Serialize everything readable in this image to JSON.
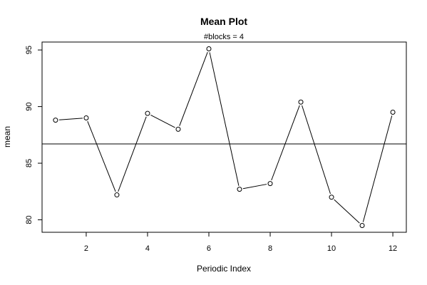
{
  "chart_data": {
    "type": "line",
    "title": "Mean Plot",
    "subtitle": "#blocks =  4",
    "xlabel": "Periodic Index",
    "ylabel": "mean",
    "x": [
      1,
      2,
      3,
      4,
      5,
      6,
      7,
      8,
      9,
      10,
      11,
      12
    ],
    "values": [
      88.8,
      89.0,
      82.2,
      89.4,
      88.0,
      95.1,
      82.7,
      83.2,
      90.4,
      82.0,
      79.5,
      89.5
    ],
    "reference_line": 86.7,
    "xlim": [
      0.56,
      12.44
    ],
    "ylim": [
      78.9,
      95.7
    ],
    "xticks": [
      2,
      4,
      6,
      8,
      10,
      12
    ],
    "yticks": [
      80,
      85,
      90,
      95
    ],
    "grid": false,
    "markers": "open-circle",
    "colors": {
      "line": "#000000",
      "marker_fill": "#ffffff",
      "background": "#ffffff"
    }
  }
}
